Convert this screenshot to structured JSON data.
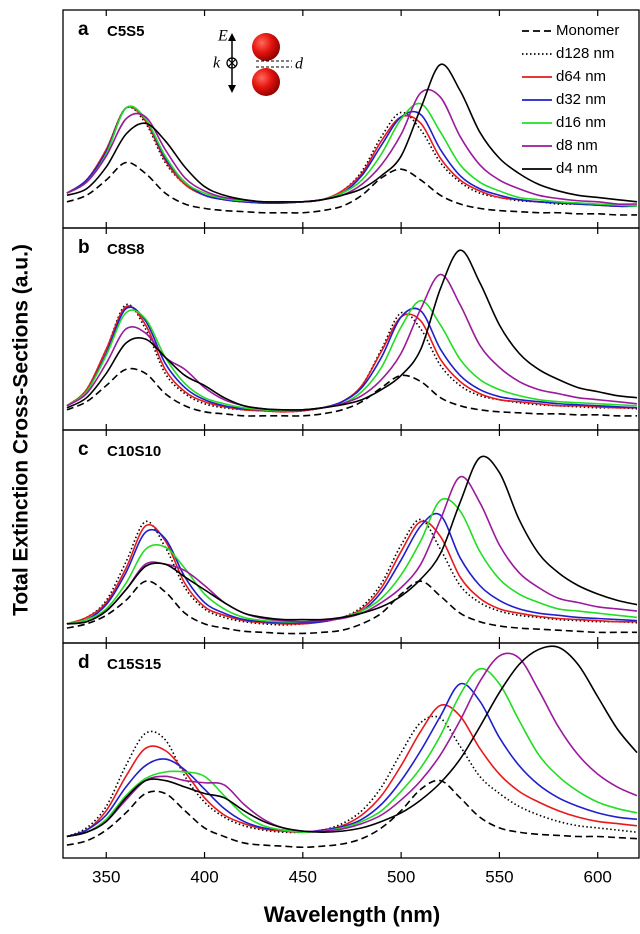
{
  "axis_labels": {
    "x": "Wavelength (nm)",
    "y": "Total Extinction Cross-Sections (a.u.)"
  },
  "chart_data": [
    {
      "type": "line",
      "label": "a",
      "title": "C5S5",
      "inset_labels": [
        "E",
        "k",
        "d"
      ],
      "ylim": [
        0,
        100
      ],
      "x": [
        330,
        340,
        350,
        360,
        370,
        380,
        390,
        400,
        410,
        420,
        430,
        440,
        450,
        460,
        470,
        480,
        490,
        500,
        510,
        520,
        530,
        540,
        550,
        560,
        570,
        580,
        590,
        600,
        610,
        620
      ],
      "series": [
        {
          "name": "Monomer",
          "color": "#000000",
          "dash": "dashed",
          "values": [
            12,
            15,
            22,
            30,
            25,
            16,
            11,
            9,
            8,
            7.5,
            7,
            7,
            7,
            8,
            10,
            15,
            23,
            27,
            22,
            15,
            11,
            9,
            8,
            7.5,
            7,
            7,
            6.5,
            6.5,
            6,
            6
          ]
        },
        {
          "name": "d128 nm",
          "color": "#000000",
          "dash": "dotted",
          "values": [
            16,
            22,
            36,
            55,
            48,
            30,
            20,
            15,
            13,
            12,
            11.5,
            11.5,
            12,
            13,
            17,
            26,
            42,
            53,
            45,
            30,
            21,
            16,
            14,
            12.5,
            12,
            11,
            11,
            10.5,
            10,
            10
          ]
        },
        {
          "name": "d64 nm",
          "color": "#e8191d",
          "dash": "solid",
          "values": [
            16,
            22,
            36,
            55,
            49,
            31,
            20,
            15,
            13,
            12,
            11.5,
            11.5,
            12,
            13,
            17,
            25,
            40,
            51,
            48,
            32,
            22,
            17,
            14,
            13,
            12,
            11.5,
            11,
            10.5,
            10,
            10
          ]
        },
        {
          "name": "d32 nm",
          "color": "#1f1fcc",
          "dash": "solid",
          "values": [
            16,
            22,
            35,
            55,
            50,
            32,
            21,
            15,
            13,
            12,
            11.5,
            11.5,
            12,
            13,
            16,
            24,
            38,
            51,
            52,
            36,
            24,
            18,
            15,
            13,
            12,
            11.5,
            11,
            10.5,
            10,
            10
          ]
        },
        {
          "name": "d16 nm",
          "color": "#22dd22",
          "dash": "solid",
          "values": [
            16,
            21,
            34,
            55,
            50,
            33,
            21,
            16,
            13.5,
            12.5,
            12,
            12,
            12,
            13,
            16,
            22,
            34,
            50,
            57,
            44,
            29,
            21,
            17,
            14,
            13,
            12,
            11.5,
            11,
            10.5,
            10
          ]
        },
        {
          "name": "d8 nm",
          "color": "#9b1a9b",
          "dash": "solid",
          "values": [
            16,
            21,
            33,
            50,
            51,
            36,
            23,
            17,
            14,
            13,
            12,
            12,
            12,
            13,
            15,
            20,
            29,
            43,
            62,
            60,
            42,
            29,
            22,
            18,
            15,
            13.5,
            12.5,
            12,
            11,
            11
          ]
        },
        {
          "name": "d4 nm",
          "color": "#000000",
          "dash": "solid",
          "values": [
            15,
            18,
            28,
            43,
            48,
            40,
            28,
            19,
            15,
            13,
            12,
            12,
            12,
            13,
            15,
            18,
            24,
            33,
            55,
            75,
            63,
            44,
            32,
            25,
            20,
            17,
            15,
            14,
            13,
            12
          ]
        }
      ]
    },
    {
      "type": "line",
      "label": "b",
      "title": "C8S8",
      "ylim": [
        0,
        100
      ],
      "x": [
        330,
        340,
        350,
        360,
        370,
        380,
        390,
        400,
        410,
        420,
        430,
        440,
        450,
        460,
        470,
        480,
        490,
        500,
        510,
        520,
        530,
        540,
        550,
        560,
        570,
        580,
        590,
        600,
        610,
        620
      ],
      "series": [
        {
          "color": "#000000",
          "dash": "dashed",
          "values": [
            10,
            14,
            22,
            30,
            28,
            18,
            12,
            9,
            8,
            7,
            7,
            7,
            7,
            8,
            10,
            14,
            21,
            27,
            24,
            16,
            12,
            10,
            9,
            8.5,
            8,
            8,
            7.5,
            7.5,
            7,
            7
          ]
        },
        {
          "color": "#000000",
          "dash": "dotted",
          "values": [
            12,
            20,
            40,
            62,
            50,
            28,
            18,
            13,
            11,
            10,
            9.5,
            9,
            9.5,
            11,
            14,
            22,
            40,
            58,
            50,
            32,
            22,
            17,
            15,
            13.5,
            12.5,
            12,
            11.5,
            11,
            11,
            10.5
          ]
        },
        {
          "color": "#e8191d",
          "dash": "solid",
          "values": [
            12,
            20,
            40,
            61,
            52,
            30,
            19,
            14,
            11.5,
            10,
            9.5,
            9,
            9.5,
            11,
            14,
            22,
            39,
            56,
            54,
            35,
            24,
            18,
            15,
            14,
            13,
            12,
            12,
            11.5,
            11,
            11
          ]
        },
        {
          "color": "#1f1fcc",
          "dash": "solid",
          "values": [
            12,
            19,
            38,
            60,
            54,
            33,
            21,
            15,
            12,
            10.5,
            10,
            9.5,
            10,
            11,
            14,
            21,
            36,
            56,
            59,
            40,
            27,
            20,
            16.5,
            15,
            14,
            13,
            12.5,
            12,
            11.5,
            11
          ]
        },
        {
          "color": "#22dd22",
          "dash": "solid",
          "values": [
            12,
            19,
            37,
            58,
            55,
            36,
            23,
            16,
            13,
            11,
            10,
            9.5,
            10,
            11,
            13,
            19,
            31,
            51,
            64,
            52,
            35,
            25,
            20,
            17,
            15,
            14,
            13.5,
            13,
            12.5,
            12
          ]
        },
        {
          "color": "#9b1a9b",
          "dash": "solid",
          "values": [
            12,
            18,
            33,
            50,
            48,
            36,
            30,
            21,
            15,
            12,
            10.5,
            10,
            10,
            11,
            13,
            17,
            25,
            38,
            60,
            77,
            62,
            42,
            31,
            24,
            20,
            18,
            16,
            15,
            14,
            13
          ]
        },
        {
          "color": "#000000",
          "dash": "solid",
          "values": [
            11,
            16,
            28,
            43,
            45,
            36,
            27,
            22,
            16,
            12,
            10.5,
            10,
            10,
            11,
            12.5,
            15,
            20,
            27,
            40,
            70,
            89,
            73,
            52,
            38,
            30,
            25,
            21,
            19,
            17,
            16
          ]
        }
      ]
    },
    {
      "type": "line",
      "label": "c",
      "title": "C10S10",
      "ylim": [
        0,
        100
      ],
      "x": [
        330,
        340,
        350,
        360,
        370,
        380,
        390,
        400,
        410,
        420,
        430,
        440,
        450,
        460,
        470,
        480,
        490,
        500,
        510,
        520,
        530,
        540,
        550,
        560,
        570,
        580,
        590,
        600,
        610,
        620
      ],
      "series": [
        {
          "color": "#000000",
          "dash": "dashed",
          "values": [
            7,
            9,
            13,
            20,
            29,
            24,
            14,
            9,
            7,
            5.5,
            5,
            4.5,
            4.5,
            5,
            6,
            9,
            14,
            23,
            29,
            22,
            14,
            10,
            8,
            7,
            6.5,
            6,
            5.5,
            5,
            5,
            5
          ]
        },
        {
          "color": "#000000",
          "dash": "dotted",
          "values": [
            9,
            12,
            20,
            38,
            57,
            45,
            26,
            16,
            12,
            10,
            9,
            8.5,
            9,
            10,
            12,
            17,
            28,
            46,
            58,
            44,
            27,
            19,
            15,
            13,
            12,
            11,
            10.5,
            10,
            10,
            9.5
          ]
        },
        {
          "color": "#e8191d",
          "dash": "solid",
          "values": [
            9,
            12,
            19,
            35,
            55,
            48,
            28,
            17,
            13,
            10.5,
            9.5,
            9,
            9,
            10,
            12,
            16,
            26,
            43,
            57,
            50,
            31,
            21,
            16,
            14,
            12.5,
            11.5,
            11,
            10.5,
            10,
            10
          ]
        },
        {
          "color": "#1f1fcc",
          "dash": "solid",
          "values": [
            9,
            11,
            18,
            33,
            52,
            49,
            31,
            19,
            14,
            11,
            10,
            9.5,
            9.5,
            10,
            12,
            15,
            24,
            39,
            55,
            60,
            40,
            27,
            20,
            16,
            14,
            13,
            12,
            11.5,
            11,
            10.5
          ]
        },
        {
          "color": "#22dd22",
          "dash": "solid",
          "values": [
            9,
            11,
            16,
            28,
            44,
            45,
            35,
            23,
            16,
            12,
            10.5,
            10,
            10,
            10.5,
            12,
            15,
            21,
            32,
            48,
            67,
            62,
            43,
            30,
            23,
            19,
            16,
            15,
            14,
            13,
            12
          ]
        },
        {
          "color": "#9b1a9b",
          "dash": "solid",
          "values": [
            9,
            10,
            15,
            25,
            37,
            37,
            34,
            27,
            19,
            14,
            11.5,
            10.5,
            10,
            10.5,
            11.5,
            14,
            19,
            26,
            37,
            58,
            78,
            66,
            46,
            33,
            26,
            21,
            19,
            17,
            16,
            15
          ]
        },
        {
          "color": "#000000",
          "dash": "solid",
          "values": [
            9,
            10,
            15,
            25,
            36,
            37,
            31,
            25,
            19,
            14,
            12,
            11,
            11,
            11,
            12,
            14,
            17,
            22,
            30,
            42,
            66,
            87,
            80,
            58,
            42,
            33,
            27,
            23,
            20,
            18
          ]
        }
      ]
    },
    {
      "type": "line",
      "label": "d",
      "title": "C15S15",
      "ylim": [
        0,
        100
      ],
      "xlim": [
        328,
        621
      ],
      "xticks": [
        350,
        400,
        450,
        500,
        550,
        600
      ],
      "x": [
        330,
        340,
        350,
        360,
        370,
        380,
        390,
        400,
        410,
        420,
        430,
        440,
        450,
        460,
        470,
        480,
        490,
        500,
        510,
        520,
        530,
        540,
        550,
        560,
        570,
        580,
        590,
        600,
        610,
        620
      ],
      "series": [
        {
          "color": "#000000",
          "dash": "dashed",
          "values": [
            6,
            8,
            13,
            21,
            30,
            30,
            22,
            14,
            10,
            7,
            6,
            5.5,
            5,
            5.5,
            6.5,
            9,
            14,
            22,
            32,
            36,
            28,
            19,
            14,
            12,
            11,
            10.5,
            10,
            10,
            9.5,
            9
          ]
        },
        {
          "color": "#000000",
          "dash": "dotted",
          "values": [
            10,
            14,
            24,
            43,
            58,
            55,
            38,
            26,
            19,
            15,
            13,
            12,
            12,
            13,
            16,
            22,
            33,
            49,
            63,
            65,
            52,
            38,
            30,
            24,
            20,
            17,
            15,
            14,
            13,
            12
          ]
        },
        {
          "color": "#e8191d",
          "dash": "solid",
          "values": [
            10,
            13,
            22,
            38,
            51,
            50,
            40,
            28,
            20,
            16,
            13.5,
            12.5,
            12,
            13,
            15,
            20,
            29,
            43,
            59,
            71,
            66,
            51,
            39,
            31,
            26,
            22,
            19,
            17,
            16,
            15
          ]
        },
        {
          "color": "#1f1fcc",
          "dash": "solid",
          "values": [
            10,
            13,
            20,
            33,
            43,
            46,
            41,
            32,
            23,
            17,
            14,
            13,
            12,
            13,
            14.5,
            18,
            25,
            36,
            50,
            66,
            81,
            73,
            56,
            43,
            34,
            28,
            24,
            21,
            19,
            18
          ]
        },
        {
          "color": "#22dd22",
          "dash": "solid",
          "values": [
            10,
            12,
            18,
            29,
            37,
            40,
            40,
            38,
            29,
            20,
            15,
            13,
            12,
            12.5,
            14,
            17,
            22,
            31,
            42,
            57,
            76,
            88,
            81,
            64,
            48,
            38,
            31,
            26,
            23,
            21
          ]
        },
        {
          "color": "#9b1a9b",
          "dash": "solid",
          "values": [
            10,
            12,
            17,
            27,
            36,
            38,
            36,
            35,
            34,
            25,
            18,
            14,
            12.5,
            12.5,
            13.5,
            16,
            20,
            27,
            36,
            48,
            64,
            82,
            94,
            93,
            78,
            61,
            48,
            39,
            33,
            29
          ]
        },
        {
          "color": "#000000",
          "dash": "solid",
          "values": [
            10,
            12,
            17,
            28,
            36,
            36,
            33,
            30,
            28,
            22,
            17,
            14,
            12.5,
            12,
            12.5,
            14,
            17,
            21,
            27,
            35,
            46,
            61,
            77,
            90,
            97,
            98,
            90,
            75,
            60,
            49
          ]
        }
      ]
    }
  ]
}
